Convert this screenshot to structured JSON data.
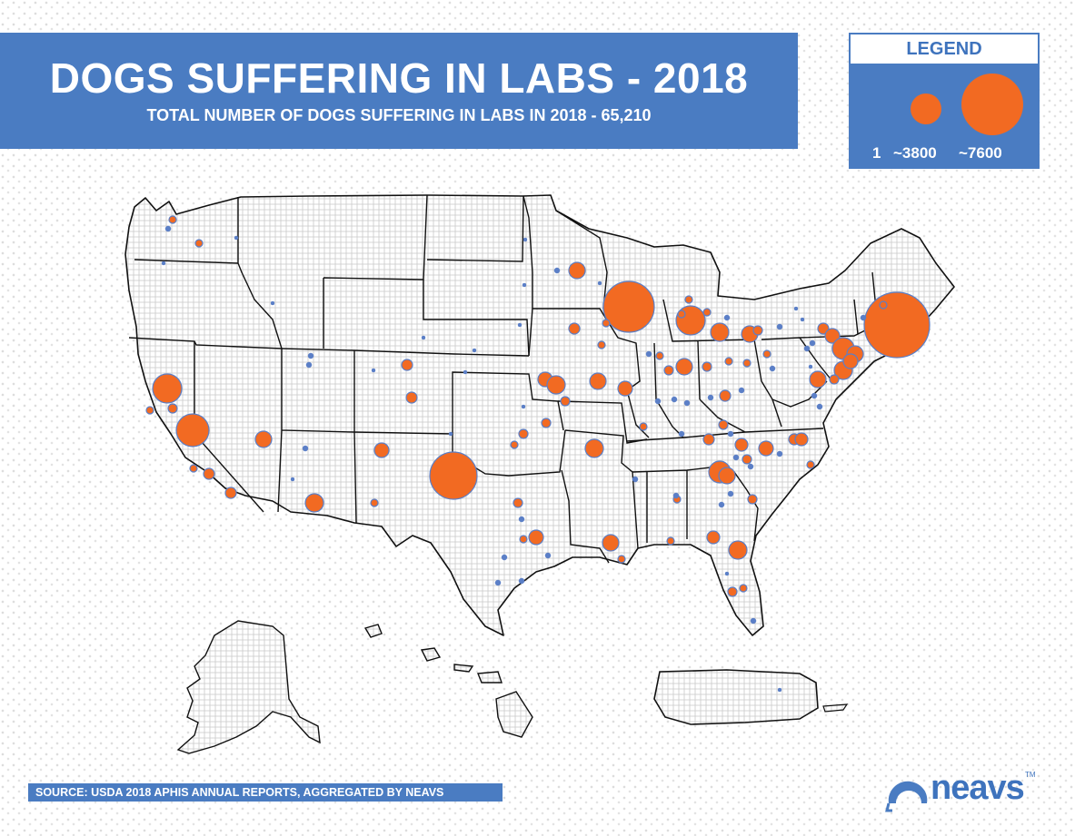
{
  "header": {
    "title": "DOGS SUFFERING IN LABS - 2018",
    "subtitle": "TOTAL NUMBER OF DOGS SUFFERING IN LABS IN 2018 - 65,210"
  },
  "legend": {
    "title": "LEGEND",
    "labels": [
      "1",
      "~3800",
      "~7600"
    ]
  },
  "footer": {
    "source": "SOURCE: USDA 2018 APHIS ANNUAL REPORTS, AGGREGATED BY NEAVS",
    "logo_text": "neavs",
    "logo_tm": "TM"
  },
  "colors": {
    "brand_blue": "#4a7cc2",
    "bubble_fill": "#f26a22",
    "bubble_stroke": "#5b7fc7"
  },
  "map_data": {
    "region": "United States, Alaska, Hawaii, Puerto Rico",
    "bubble_scale": {
      "min_value": 1,
      "mid_value": 3800,
      "max_value": 7600
    }
  }
}
